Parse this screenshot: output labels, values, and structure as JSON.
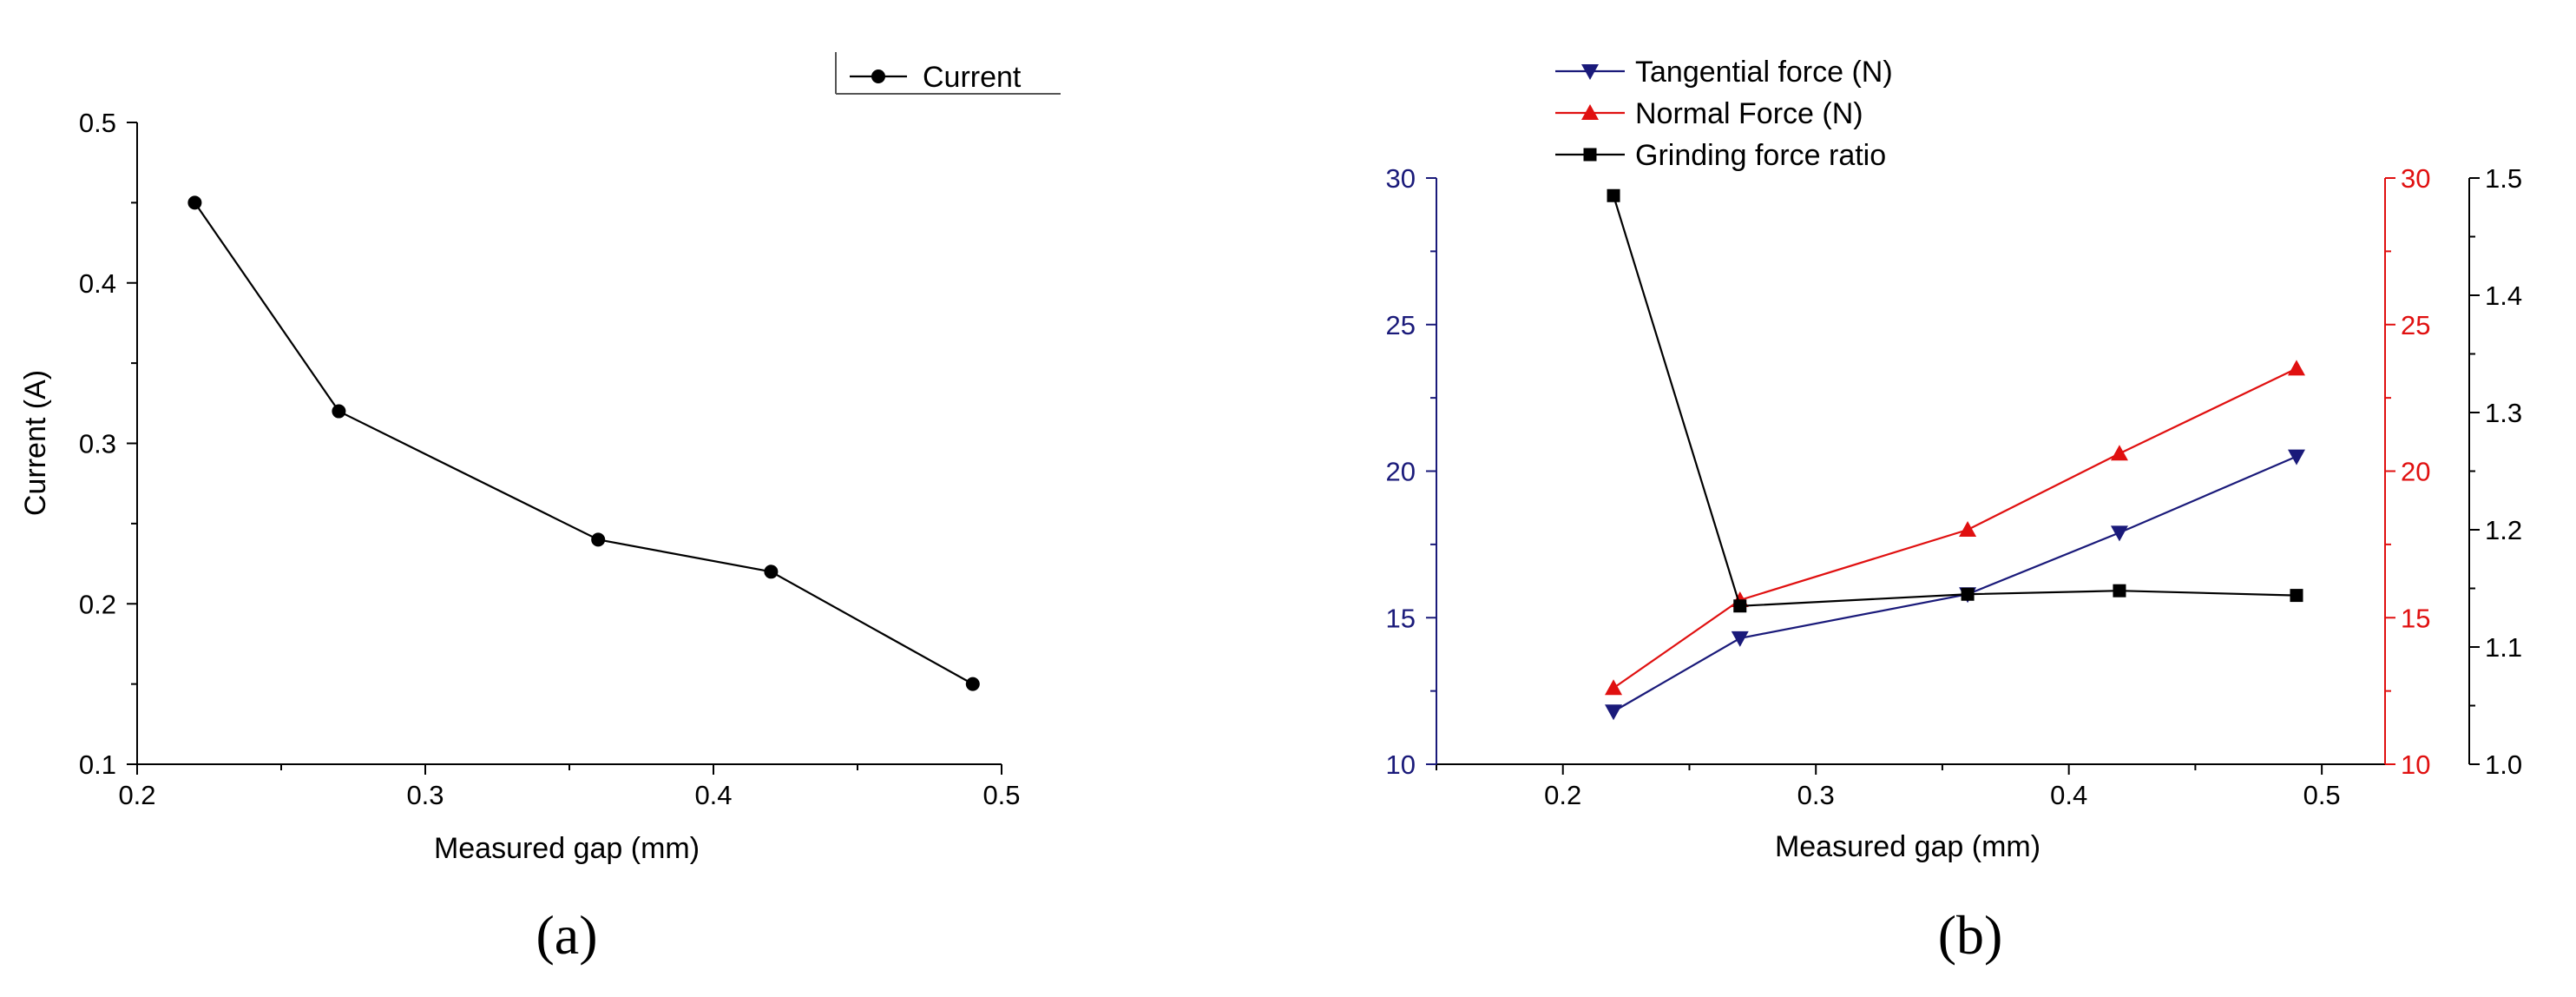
{
  "figure": {
    "panels": [
      {
        "label": "(a)"
      },
      {
        "label": "(b)"
      }
    ]
  },
  "colors": {
    "black": "#000000",
    "navy": "#1a1a7a",
    "red": "#e01010"
  },
  "chart_data": [
    {
      "type": "line",
      "panel": "(a)",
      "title": "",
      "xlabel": "Measured gap (mm)",
      "ylabel": "Current (A)",
      "xlim": [
        0.2,
        0.5
      ],
      "ylim": [
        0.1,
        0.5
      ],
      "x_ticks": [
        0.2,
        0.3,
        0.4,
        0.5
      ],
      "x_tick_labels": [
        "0.2",
        "0.3",
        "0.4",
        "0.5"
      ],
      "y_ticks": [
        0.1,
        0.2,
        0.3,
        0.4,
        0.5
      ],
      "y_tick_labels": [
        "0.1",
        "0.2",
        "0.3",
        "0.4",
        "0.5"
      ],
      "grid": false,
      "legend_position": "top-right",
      "series": [
        {
          "name": "Current",
          "marker": "circle",
          "color": "#000000",
          "x": [
            0.22,
            0.27,
            0.36,
            0.42,
            0.49
          ],
          "values": [
            0.45,
            0.32,
            0.24,
            0.22,
            0.15
          ]
        }
      ]
    },
    {
      "type": "line",
      "panel": "(b)",
      "title": "",
      "xlabel": "Measured gap (mm)",
      "xlim": [
        0.15,
        0.525
      ],
      "x_ticks": [
        0.2,
        0.3,
        0.4,
        0.5
      ],
      "x_tick_labels": [
        "0.2",
        "0.3",
        "0.4",
        "0.5"
      ],
      "grid": false,
      "legend_position": "top-left",
      "axes": {
        "left": {
          "ylim": [
            10,
            30
          ],
          "ticks": [
            10,
            15,
            20,
            25,
            30
          ],
          "tick_labels": [
            "10",
            "15",
            "20",
            "25",
            "30"
          ],
          "color": "#1a1a7a"
        },
        "right_inner": {
          "ylim": [
            10,
            30
          ],
          "ticks": [
            10,
            15,
            20,
            25,
            30
          ],
          "tick_labels": [
            "10",
            "15",
            "20",
            "25",
            "30"
          ],
          "color": "#e01010"
        },
        "right_outer": {
          "ylim": [
            1.0,
            1.5
          ],
          "ticks": [
            1.0,
            1.1,
            1.2,
            1.3,
            1.4,
            1.5
          ],
          "tick_labels": [
            "1.0",
            "1.1",
            "1.2",
            "1.3",
            "1.4",
            "1.5"
          ],
          "color": "#000000"
        }
      },
      "series": [
        {
          "name": "Tangential force (N)",
          "axis": "left",
          "marker": "triangle-down",
          "color": "#1a1a7a",
          "x": [
            0.22,
            0.27,
            0.36,
            0.42,
            0.49
          ],
          "values": [
            11.8,
            14.3,
            15.8,
            17.9,
            20.5
          ]
        },
        {
          "name": "Normal Force (N)",
          "axis": "right_inner",
          "marker": "triangle-up",
          "color": "#e01010",
          "x": [
            0.22,
            0.27,
            0.36,
            0.42,
            0.49
          ],
          "values": [
            12.6,
            15.6,
            18.0,
            20.6,
            23.5
          ]
        },
        {
          "name": "Grinding force ratio",
          "axis": "right_outer",
          "marker": "square",
          "color": "#000000",
          "x": [
            0.22,
            0.27,
            0.36,
            0.42,
            0.49
          ],
          "values": [
            1.485,
            1.135,
            1.145,
            1.148,
            1.144
          ]
        }
      ]
    }
  ]
}
